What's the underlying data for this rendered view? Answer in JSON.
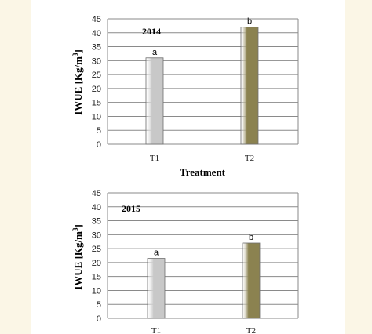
{
  "chart_data": [
    {
      "type": "bar",
      "year_label": "2014",
      "categories": [
        "T1",
        "T2"
      ],
      "values": [
        31,
        42
      ],
      "letters": [
        "a",
        "b"
      ],
      "colors": [
        "#c8c8c8",
        "#8b8250"
      ],
      "ylabel": "IWUE [Kg/m3]",
      "ylabel_base": "IWUE [Kg/m",
      "ylabel_sup": "3",
      "ylabel_end": "]",
      "xlabel": "Treatment",
      "ylim": [
        0,
        45
      ],
      "yticks": [
        "0",
        "5",
        "10",
        "15",
        "20",
        "25",
        "30",
        "35",
        "40",
        "45"
      ],
      "grid": true
    },
    {
      "type": "bar",
      "year_label": "2015",
      "categories": [
        "T1",
        "T2"
      ],
      "values": [
        21.5,
        27
      ],
      "letters": [
        "a",
        "b"
      ],
      "colors": [
        "#c8c8c8",
        "#8b8250"
      ],
      "ylabel": "IWUE [Kg/m3]",
      "ylabel_base": "IWUE [Kg/m",
      "ylabel_sup": "3",
      "ylabel_end": "]",
      "xlabel": "",
      "ylim": [
        0,
        45
      ],
      "yticks": [
        "0",
        "5",
        "10",
        "15",
        "20",
        "25",
        "30",
        "35",
        "40",
        "45"
      ],
      "grid": true
    }
  ]
}
